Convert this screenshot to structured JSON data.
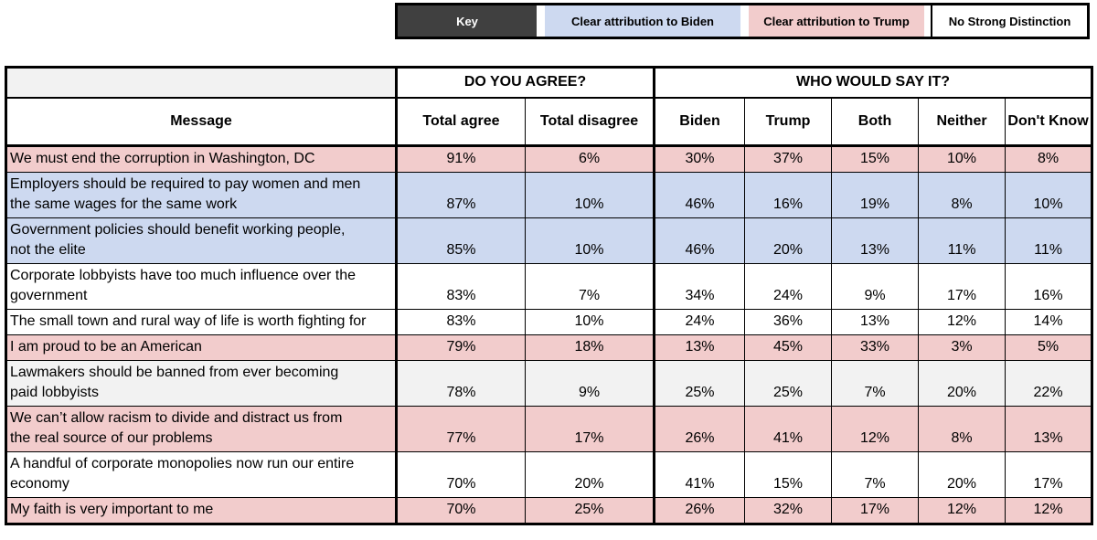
{
  "key": {
    "title": "Key",
    "items": [
      {
        "id": "biden",
        "label": "Clear attribution to Biden"
      },
      {
        "id": "trump",
        "label": "Clear attribution to Trump"
      },
      {
        "id": "none",
        "label": "No Strong Distinction"
      }
    ]
  },
  "colors": {
    "biden_blue": "#cdd9f0",
    "trump_pink": "#f2cccc",
    "neutral_gray": "#f2f2f2",
    "key_dark": "#404040"
  },
  "chart_data": {
    "type": "table",
    "group_headers": [
      "DO YOU AGREE?",
      "WHO WOULD SAY IT?"
    ],
    "columns": [
      "Message",
      "Total agree",
      "Total disagree",
      "Biden",
      "Trump",
      "Both",
      "Neither",
      "Don't Know"
    ],
    "rows": [
      {
        "message": "We must end the corruption in Washington, DC",
        "attribution": "trump",
        "values": [
          "91%",
          "6%",
          "30%",
          "37%",
          "15%",
          "10%",
          "8%"
        ]
      },
      {
        "message": "Employers should be required to pay women and men\nthe same wages for the same work",
        "attribution": "biden",
        "values": [
          "87%",
          "10%",
          "46%",
          "16%",
          "19%",
          "8%",
          "10%"
        ]
      },
      {
        "message": "Government policies should benefit working people,\nnot the elite",
        "attribution": "biden",
        "values": [
          "85%",
          "10%",
          "46%",
          "20%",
          "13%",
          "11%",
          "11%"
        ]
      },
      {
        "message": "Corporate lobbyists have too much influence over the\ngovernment",
        "attribution": "white",
        "values": [
          "83%",
          "7%",
          "34%",
          "24%",
          "9%",
          "17%",
          "16%"
        ]
      },
      {
        "message": "The small town and rural way of life is worth fighting for",
        "attribution": "white",
        "values": [
          "83%",
          "10%",
          "24%",
          "36%",
          "13%",
          "12%",
          "14%"
        ]
      },
      {
        "message": "I am proud to be an American",
        "attribution": "trump",
        "values": [
          "79%",
          "18%",
          "13%",
          "45%",
          "33%",
          "3%",
          "5%"
        ]
      },
      {
        "message": "Lawmakers should be banned from ever becoming\npaid lobbyists",
        "attribution": "gray",
        "values": [
          "78%",
          "9%",
          "25%",
          "25%",
          "7%",
          "20%",
          "22%"
        ]
      },
      {
        "message": "We can’t allow racism to divide and distract us from\nthe real source of our problems",
        "attribution": "trump",
        "values": [
          "77%",
          "17%",
          "26%",
          "41%",
          "12%",
          "8%",
          "13%"
        ]
      },
      {
        "message": "A handful of corporate monopolies now run our entire\neconomy",
        "attribution": "white",
        "values": [
          "70%",
          "20%",
          "41%",
          "15%",
          "7%",
          "20%",
          "17%"
        ]
      },
      {
        "message": "My faith is very important to me",
        "attribution": "trump",
        "values": [
          "70%",
          "25%",
          "26%",
          "32%",
          "17%",
          "12%",
          "12%"
        ]
      }
    ]
  }
}
